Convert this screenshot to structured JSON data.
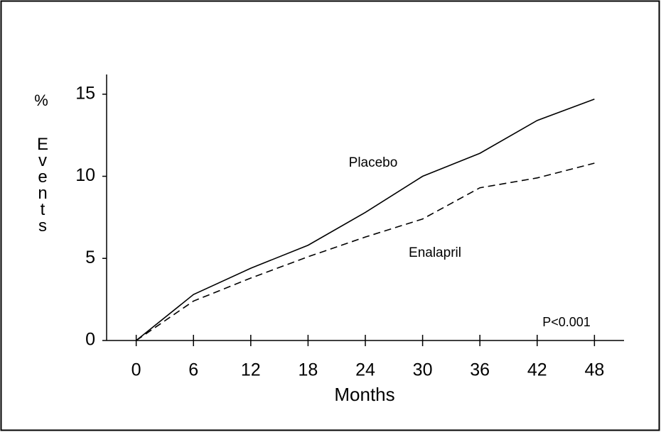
{
  "chart_data": {
    "type": "line",
    "ylabel_unit": "%",
    "ylabel": "Events",
    "xlabel": "Months",
    "x": [
      0,
      6,
      12,
      18,
      24,
      30,
      36,
      42,
      48
    ],
    "series": [
      {
        "name": "Placebo",
        "color": "#000000",
        "dashed": false,
        "values": [
          0,
          2.8,
          4.4,
          5.8,
          7.8,
          10.0,
          11.4,
          13.4,
          14.7
        ]
      },
      {
        "name": "Enalapril",
        "color": "#000000",
        "dashed": true,
        "values": [
          0,
          2.4,
          3.8,
          5.1,
          6.3,
          7.4,
          9.3,
          9.9,
          10.8
        ]
      }
    ],
    "annotation": "P<0.001",
    "xlim": [
      -3.1,
      51.1
    ],
    "ylim": [
      0,
      16.2
    ],
    "xticks": [
      0,
      6,
      12,
      18,
      24,
      30,
      36,
      42,
      48
    ],
    "yticks": [
      0,
      5,
      10,
      15
    ],
    "grid": false
  }
}
